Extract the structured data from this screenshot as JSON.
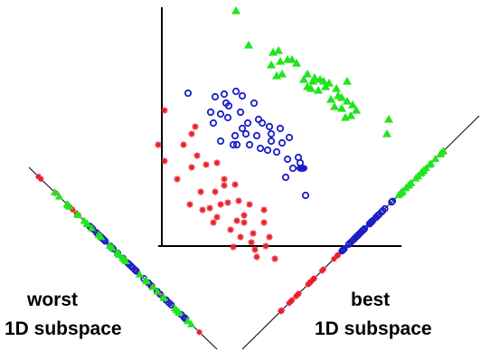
{
  "labels": {
    "worst_line1": "worst",
    "worst_line2": "1D subspace",
    "best_line1": "best",
    "best_line2": "1D subspace"
  },
  "colors": {
    "class_red": "#e8202a",
    "class_blue": "#1a1fc8",
    "class_green": "#22e41e",
    "axes": "#000000"
  },
  "classes": [
    {
      "class": "red",
      "marker": "asterisk"
    },
    {
      "class": "blue",
      "marker": "ring"
    },
    {
      "class": "green",
      "marker": "triangle"
    }
  ]
}
